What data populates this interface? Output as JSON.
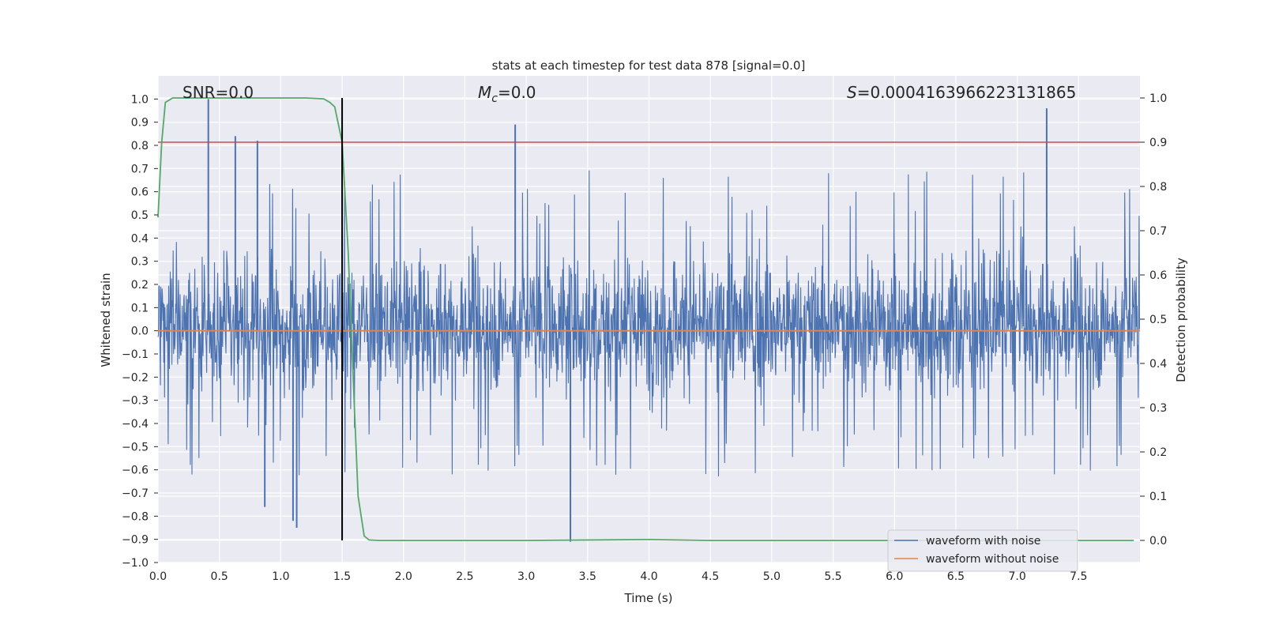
{
  "chart_data": {
    "type": "line",
    "title": "stats at each timestep for test data 878 [signal=0.0]",
    "xlabel": "Time (s)",
    "ylabel": "Whitened strain",
    "y2label": "Detection probability",
    "xlim": [
      0.0,
      8.0
    ],
    "ylim": [
      -1.0,
      1.1
    ],
    "y2lim": [
      -0.05,
      1.05
    ],
    "x_ticks": [
      "0.0",
      "0.5",
      "1.0",
      "1.5",
      "2.0",
      "2.5",
      "3.0",
      "3.5",
      "4.0",
      "4.5",
      "5.0",
      "5.5",
      "6.0",
      "6.5",
      "7.0",
      "7.5"
    ],
    "y_ticks": [
      "1.0",
      "0.9",
      "0.8",
      "0.7",
      "0.6",
      "0.5",
      "0.4",
      "0.3",
      "0.2",
      "0.1",
      "0.0",
      "−0.1",
      "−0.2",
      "−0.3",
      "−0.4",
      "−0.5",
      "−0.6",
      "−0.7",
      "−0.8",
      "−0.9",
      "−1.0"
    ],
    "y2_ticks": [
      "1.0",
      "0.9",
      "0.8",
      "0.7",
      "0.6",
      "0.5",
      "0.4",
      "0.3",
      "0.2",
      "0.1",
      "0.0"
    ],
    "grid": true,
    "legend_position": "lower right",
    "annotations": {
      "snr": "SNR=0.0",
      "mc_symbol": "M",
      "mc_sub": "c",
      "mc_value": "=0.0",
      "s_symbol": "S",
      "s_value": "=0.0004163966223131865"
    },
    "series": [
      {
        "name": "waveform with noise",
        "axis": "left",
        "color": "#4c72b0",
        "style": "dense noise",
        "typical_range": [
          -0.45,
          0.5
        ],
        "peaks": [
          {
            "x": 0.41,
            "y": 1.0
          },
          {
            "x": 2.91,
            "y": 0.89
          },
          {
            "x": 7.24,
            "y": 0.96
          },
          {
            "x": 0.63,
            "y": 0.84
          },
          {
            "x": 0.81,
            "y": 0.82
          },
          {
            "x": 3.36,
            "y": -0.91
          },
          {
            "x": 1.1,
            "y": -0.82
          },
          {
            "x": 1.13,
            "y": -0.85
          },
          {
            "x": 0.87,
            "y": -0.76
          }
        ]
      },
      {
        "name": "waveform without noise",
        "axis": "left",
        "color": "#dd8452",
        "x": [
          0.0,
          8.0
        ],
        "y": [
          0.0,
          0.0
        ]
      },
      {
        "axis": "right",
        "color": "#55a868",
        "x": [
          0.0,
          0.03,
          0.06,
          0.12,
          0.2,
          0.4,
          0.8,
          1.2,
          1.35,
          1.4,
          1.44,
          1.5,
          1.55,
          1.6,
          1.63,
          1.68,
          1.72,
          1.8,
          2.0,
          3.0,
          4.0,
          4.5,
          6.0,
          7.0,
          7.95
        ],
        "y": [
          0.73,
          0.9,
          0.99,
          1.0,
          1.0,
          1.0,
          1.0,
          1.0,
          0.998,
          0.99,
          0.98,
          0.9,
          0.65,
          0.3,
          0.1,
          0.01,
          0.001,
          0.0,
          0.0,
          0.0,
          0.002,
          0.0,
          0.0,
          0.0,
          0.0
        ]
      }
    ],
    "threshold_line": {
      "axis": "right",
      "y": 0.9,
      "color": "#c44e52"
    },
    "vertical_line": {
      "x": 1.5,
      "color": "#000000",
      "y_from": 0.0,
      "y_to": 1.0,
      "axis": "right"
    }
  }
}
